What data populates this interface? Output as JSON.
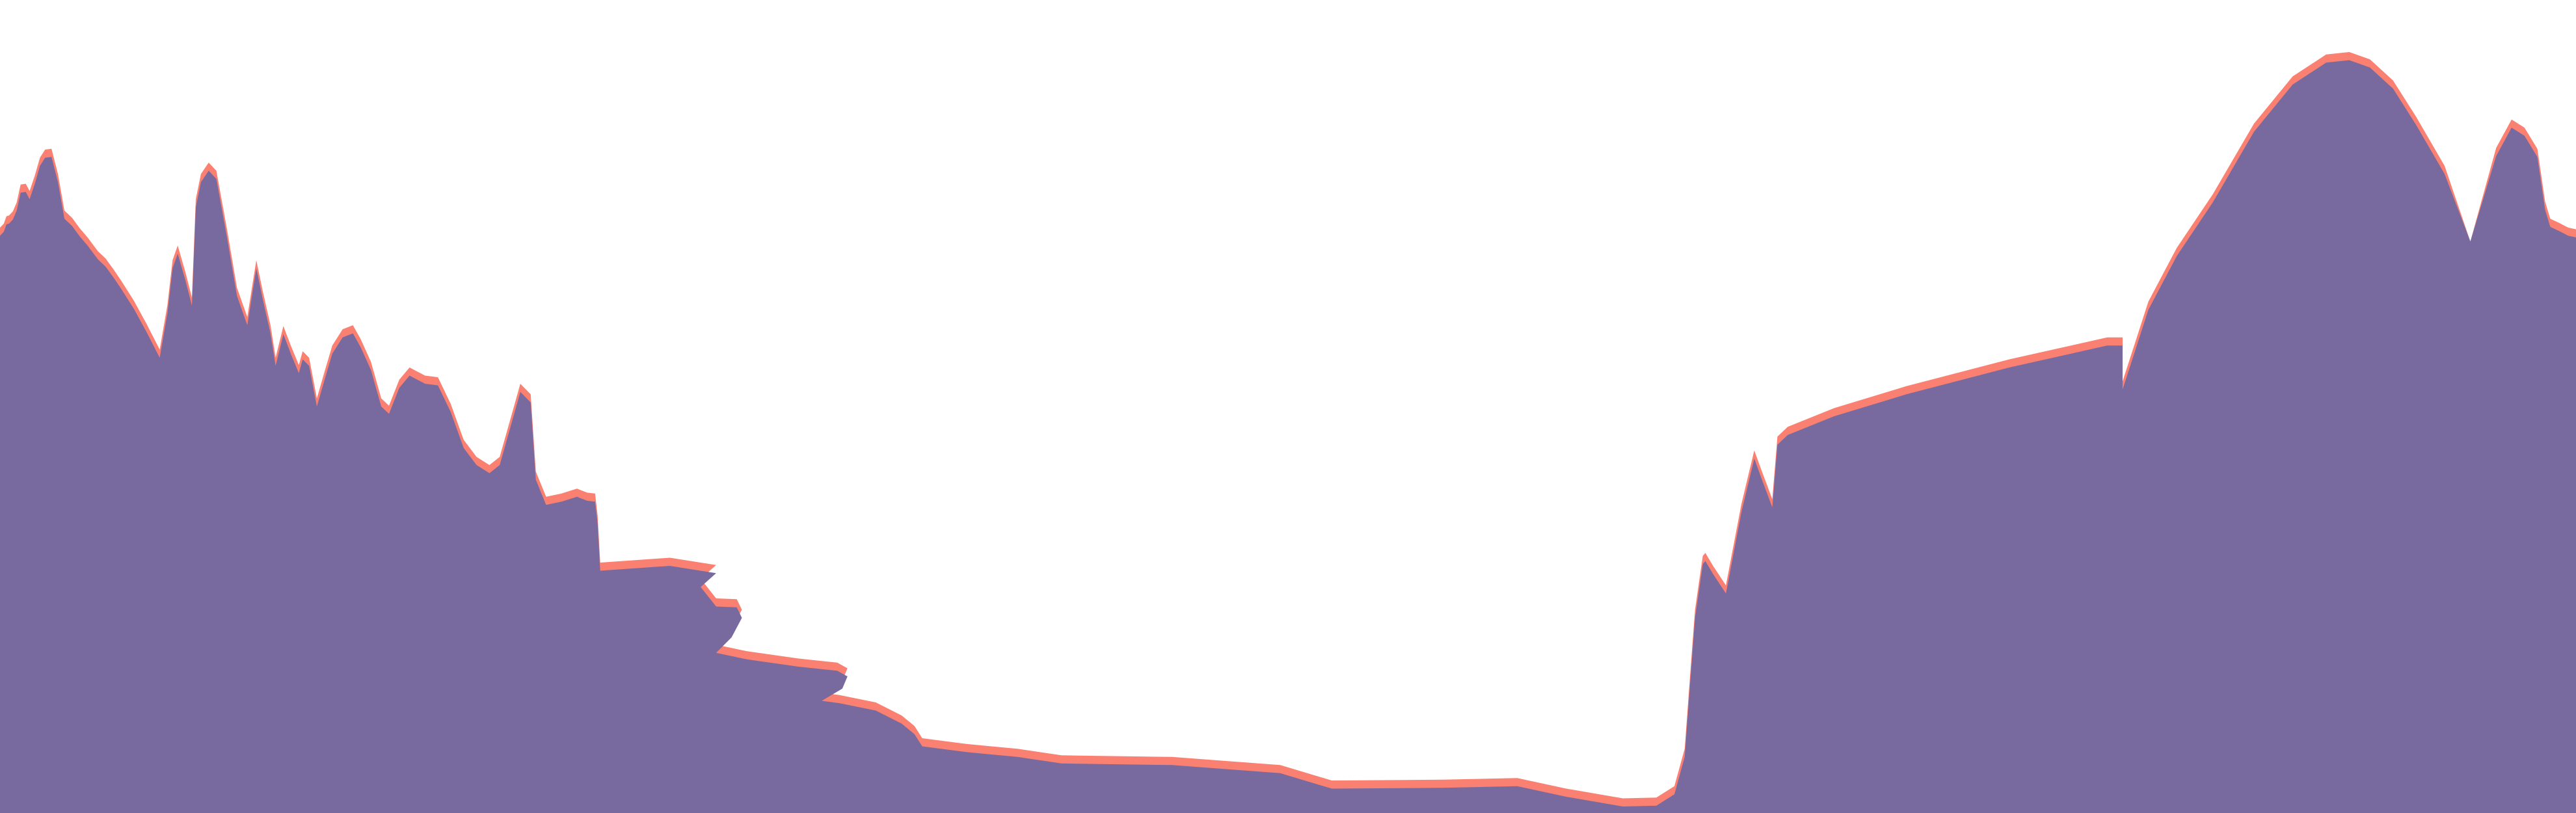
{
  "chart_data": {
    "type": "area",
    "grid": false,
    "legend": "none",
    "xlim": [
      0,
      1000
    ],
    "ylim": [
      0,
      100
    ],
    "series": [
      {
        "color": "#fa8072",
        "points": [
          [
            0,
            72.0
          ],
          [
            1.5,
            72.5
          ],
          [
            2.5,
            73.4
          ],
          [
            3.5,
            73.5
          ],
          [
            5,
            74.0
          ],
          [
            6.5,
            75.1
          ],
          [
            8,
            77.3
          ],
          [
            10,
            77.4
          ],
          [
            11.5,
            76.5
          ],
          [
            13.5,
            78.4
          ],
          [
            15.5,
            80.6
          ],
          [
            17.5,
            81.6
          ],
          [
            20,
            81.7
          ],
          [
            22.5,
            78.6
          ],
          [
            25,
            74.1
          ],
          [
            28,
            73.2
          ],
          [
            31,
            71.9
          ],
          [
            34,
            70.8
          ],
          [
            38,
            69.1
          ],
          [
            41,
            68.2
          ],
          [
            44,
            66.9
          ],
          [
            47,
            65.5
          ],
          [
            52,
            63.0
          ],
          [
            57,
            60.1
          ],
          [
            62,
            57.0
          ],
          [
            65,
            62.5
          ],
          [
            67,
            68.0
          ],
          [
            69,
            69.8
          ],
          [
            72,
            66.5
          ],
          [
            74.5,
            63.4
          ],
          [
            76,
            75.5
          ],
          [
            78,
            78.6
          ],
          [
            81,
            80.0
          ],
          [
            84,
            79.0
          ],
          [
            88,
            72.0
          ],
          [
            92,
            64.6
          ],
          [
            96,
            61.0
          ],
          [
            99.5,
            68.0
          ],
          [
            102,
            64.2
          ],
          [
            105,
            60.0
          ],
          [
            107,
            56.0
          ],
          [
            110,
            59.9
          ],
          [
            113,
            57.4
          ],
          [
            116,
            55.1
          ],
          [
            117.5,
            56.8
          ],
          [
            120,
            56.0
          ],
          [
            123,
            51.0
          ],
          [
            126,
            54.3
          ],
          [
            129,
            57.5
          ],
          [
            133,
            59.5
          ],
          [
            137,
            60.0
          ],
          [
            140,
            58.3
          ],
          [
            144,
            55.5
          ],
          [
            148,
            51.0
          ],
          [
            151,
            50.1
          ],
          [
            155,
            53.3
          ],
          [
            159,
            54.8
          ],
          [
            165,
            53.8
          ],
          [
            170,
            53.6
          ],
          [
            175,
            50.3
          ],
          [
            180,
            45.9
          ],
          [
            185,
            43.8
          ],
          [
            190,
            42.8
          ],
          [
            194,
            43.8
          ],
          [
            198,
            48.3
          ],
          [
            202,
            52.8
          ],
          [
            206,
            51.5
          ],
          [
            208,
            42.0
          ],
          [
            212,
            38.9
          ],
          [
            218,
            39.3
          ],
          [
            224,
            39.9
          ],
          [
            228,
            39.4
          ],
          [
            231,
            39.3
          ],
          [
            232,
            36.6
          ],
          [
            233,
            30.8
          ],
          [
            260,
            31.4
          ],
          [
            278,
            30.5
          ],
          [
            272,
            28.8
          ],
          [
            278,
            26.4
          ],
          [
            286,
            26.3
          ],
          [
            288,
            25.0
          ],
          [
            284,
            22.6
          ],
          [
            278,
            20.7
          ],
          [
            290,
            19.9
          ],
          [
            310,
            19.0
          ],
          [
            325,
            18.5
          ],
          [
            329,
            17.8
          ],
          [
            327,
            16.3
          ],
          [
            319,
            14.8
          ],
          [
            326,
            14.5
          ],
          [
            340,
            13.6
          ],
          [
            350,
            12.0
          ],
          [
            355,
            10.7
          ],
          [
            358,
            9.2
          ],
          [
            375,
            8.5
          ],
          [
            395,
            7.9
          ],
          [
            412,
            7.1
          ],
          [
            455,
            6.9
          ],
          [
            497,
            5.9
          ],
          [
            517,
            4.0
          ],
          [
            560,
            4.1
          ],
          [
            589,
            4.3
          ],
          [
            608,
            3.0
          ],
          [
            630,
            1.8
          ],
          [
            643,
            1.9
          ],
          [
            650,
            3.3
          ],
          [
            654,
            7.9
          ],
          [
            656,
            16.6
          ],
          [
            658,
            25.0
          ],
          [
            661,
            31.6
          ],
          [
            662,
            32.0
          ],
          [
            665,
            30.4
          ],
          [
            670,
            28.0
          ],
          [
            676,
            38.0
          ],
          [
            681,
            44.6
          ],
          [
            684,
            42.0
          ],
          [
            688,
            38.6
          ],
          [
            690,
            46.3
          ],
          [
            694,
            47.5
          ],
          [
            712,
            49.8
          ],
          [
            740,
            52.5
          ],
          [
            780,
            55.8
          ],
          [
            818,
            58.5
          ],
          [
            824,
            58.5
          ],
          [
            824,
            53.1
          ],
          [
            834,
            62.9
          ],
          [
            845,
            69.5
          ],
          [
            859,
            76.1
          ],
          [
            875,
            84.8
          ],
          [
            890,
            90.6
          ],
          [
            903,
            93.3
          ],
          [
            912,
            93.6
          ],
          [
            920,
            92.7
          ],
          [
            929,
            90.1
          ],
          [
            938,
            85.6
          ],
          [
            949,
            79.6
          ],
          [
            959,
            70.3
          ],
          [
            969,
            81.8
          ],
          [
            975,
            85.3
          ],
          [
            980,
            84.3
          ],
          [
            985,
            81.7
          ],
          [
            988,
            75.2
          ],
          [
            990,
            73.1
          ],
          [
            994,
            72.5
          ],
          [
            997,
            72.0
          ],
          [
            1000,
            71.8
          ]
        ]
      },
      {
        "color": "#786a9f",
        "points": [
          [
            0,
            71.0
          ],
          [
            1.5,
            71.5
          ],
          [
            2.5,
            72.4
          ],
          [
            3.5,
            72.5
          ],
          [
            5,
            73.0
          ],
          [
            6.5,
            74.1
          ],
          [
            8,
            76.3
          ],
          [
            10,
            76.4
          ],
          [
            11.5,
            75.5
          ],
          [
            13.5,
            77.4
          ],
          [
            15.5,
            79.6
          ],
          [
            17.5,
            80.6
          ],
          [
            20,
            80.7
          ],
          [
            22.5,
            77.6
          ],
          [
            25,
            73.1
          ],
          [
            28,
            72.2
          ],
          [
            31,
            70.9
          ],
          [
            34,
            69.8
          ],
          [
            38,
            68.1
          ],
          [
            41,
            67.2
          ],
          [
            44,
            65.9
          ],
          [
            47,
            64.5
          ],
          [
            52,
            62.0
          ],
          [
            57,
            59.1
          ],
          [
            62,
            56.0
          ],
          [
            65,
            61.5
          ],
          [
            67,
            67.0
          ],
          [
            69,
            68.8
          ],
          [
            72,
            65.5
          ],
          [
            74.5,
            62.4
          ],
          [
            76,
            74.5
          ],
          [
            78,
            77.6
          ],
          [
            81,
            79.0
          ],
          [
            84,
            78.0
          ],
          [
            88,
            71.0
          ],
          [
            92,
            63.6
          ],
          [
            96,
            60.0
          ],
          [
            99.5,
            67.0
          ],
          [
            102,
            63.2
          ],
          [
            105,
            59.0
          ],
          [
            107,
            55.0
          ],
          [
            110,
            58.9
          ],
          [
            113,
            56.4
          ],
          [
            116,
            54.1
          ],
          [
            117.5,
            55.8
          ],
          [
            120,
            55.0
          ],
          [
            123,
            50.0
          ],
          [
            126,
            53.3
          ],
          [
            129,
            56.5
          ],
          [
            133,
            58.5
          ],
          [
            137,
            59.0
          ],
          [
            140,
            57.3
          ],
          [
            144,
            54.5
          ],
          [
            148,
            50.0
          ],
          [
            151,
            49.1
          ],
          [
            155,
            52.3
          ],
          [
            159,
            53.8
          ],
          [
            165,
            52.8
          ],
          [
            170,
            52.6
          ],
          [
            175,
            49.3
          ],
          [
            180,
            44.9
          ],
          [
            185,
            42.8
          ],
          [
            190,
            41.8
          ],
          [
            194,
            42.8
          ],
          [
            198,
            47.3
          ],
          [
            202,
            51.8
          ],
          [
            206,
            50.5
          ],
          [
            208,
            41.0
          ],
          [
            212,
            37.9
          ],
          [
            218,
            38.3
          ],
          [
            224,
            38.9
          ],
          [
            228,
            38.4
          ],
          [
            231,
            38.3
          ],
          [
            232,
            35.6
          ],
          [
            233,
            29.8
          ],
          [
            260,
            30.4
          ],
          [
            278,
            29.5
          ],
          [
            272,
            27.8
          ],
          [
            278,
            25.4
          ],
          [
            286,
            25.3
          ],
          [
            288,
            24.0
          ],
          [
            284,
            21.6
          ],
          [
            278,
            19.7
          ],
          [
            290,
            18.9
          ],
          [
            310,
            18.0
          ],
          [
            325,
            17.5
          ],
          [
            329,
            16.8
          ],
          [
            327,
            15.3
          ],
          [
            319,
            13.8
          ],
          [
            326,
            13.5
          ],
          [
            340,
            12.6
          ],
          [
            350,
            11.0
          ],
          [
            355,
            9.7
          ],
          [
            358,
            8.2
          ],
          [
            375,
            7.5
          ],
          [
            395,
            6.9
          ],
          [
            412,
            6.1
          ],
          [
            455,
            5.9
          ],
          [
            497,
            4.9
          ],
          [
            517,
            3.0
          ],
          [
            560,
            3.1
          ],
          [
            589,
            3.3
          ],
          [
            608,
            2.0
          ],
          [
            630,
            0.8
          ],
          [
            643,
            0.9
          ],
          [
            650,
            2.3
          ],
          [
            654,
            6.9
          ],
          [
            656,
            15.6
          ],
          [
            658,
            24.0
          ],
          [
            661,
            30.6
          ],
          [
            662,
            31.0
          ],
          [
            665,
            29.4
          ],
          [
            670,
            27.0
          ],
          [
            676,
            37.0
          ],
          [
            681,
            43.6
          ],
          [
            684,
            41.0
          ],
          [
            688,
            37.6
          ],
          [
            690,
            45.3
          ],
          [
            694,
            46.5
          ],
          [
            712,
            48.8
          ],
          [
            740,
            51.5
          ],
          [
            780,
            54.8
          ],
          [
            818,
            57.5
          ],
          [
            824,
            57.5
          ],
          [
            824,
            52.1
          ],
          [
            834,
            61.9
          ],
          [
            845,
            68.5
          ],
          [
            859,
            75.1
          ],
          [
            875,
            83.8
          ],
          [
            890,
            89.6
          ],
          [
            903,
            92.3
          ],
          [
            912,
            92.6
          ],
          [
            920,
            91.7
          ],
          [
            929,
            89.1
          ],
          [
            938,
            84.6
          ],
          [
            949,
            78.6
          ],
          [
            959,
            70.3
          ],
          [
            969,
            80.8
          ],
          [
            975,
            84.3
          ],
          [
            980,
            83.3
          ],
          [
            985,
            80.7
          ],
          [
            988,
            74.2
          ],
          [
            990,
            72.1
          ],
          [
            994,
            71.5
          ],
          [
            997,
            71.0
          ],
          [
            1000,
            70.8
          ]
        ]
      }
    ]
  }
}
